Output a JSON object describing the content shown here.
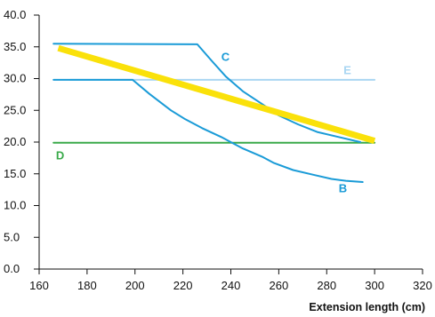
{
  "chart_data": {
    "type": "line",
    "title": "",
    "xlabel": "Extension length (cm)",
    "ylabel": "",
    "xlim": [
      160,
      320
    ],
    "ylim": [
      0,
      40
    ],
    "x_ticks": [
      160,
      180,
      200,
      220,
      240,
      260,
      280,
      300,
      320
    ],
    "y_ticks": [
      "0.0",
      "5.0",
      "10.0",
      "15.0",
      "20.0",
      "25.0",
      "30.0",
      "35.0",
      "40.0"
    ],
    "y_tick_values": [
      0,
      5,
      10,
      15,
      20,
      25,
      30,
      35,
      40
    ],
    "grid": false,
    "series": [
      {
        "name": "C",
        "color": "#1a9bd7",
        "label_at": [
          236,
          32.8
        ],
        "points": [
          [
            166,
            35.5
          ],
          [
            226,
            35.4
          ],
          [
            232,
            32.8
          ],
          [
            238,
            30.3
          ],
          [
            245,
            28.0
          ],
          [
            253,
            26.0
          ],
          [
            260,
            24.2
          ],
          [
            268,
            22.8
          ],
          [
            276,
            21.6
          ],
          [
            285,
            20.8
          ],
          [
            294,
            20.0
          ]
        ]
      },
      {
        "name": "B",
        "color": "#1a9bd7",
        "label_at": [
          285,
          12.1
        ],
        "points": [
          [
            166,
            29.8
          ],
          [
            199,
            29.8
          ],
          [
            206,
            27.6
          ],
          [
            215,
            25.0
          ],
          [
            221,
            23.6
          ],
          [
            228,
            22.2
          ],
          [
            236,
            20.8
          ],
          [
            245,
            19.0
          ],
          [
            253,
            17.7
          ],
          [
            258,
            16.7
          ],
          [
            266,
            15.6
          ],
          [
            275,
            14.8
          ],
          [
            282,
            14.2
          ],
          [
            288,
            13.9
          ],
          [
            295,
            13.7
          ]
        ]
      },
      {
        "name": "E",
        "color": "#a9d6f2",
        "label_at": [
          287,
          30.7
        ],
        "points": [
          [
            173,
            29.8
          ],
          [
            300,
            29.8
          ]
        ]
      },
      {
        "name": "D",
        "color": "#3aaa4a",
        "label_at": [
          167,
          17.3
        ],
        "points": [
          [
            166,
            19.9
          ],
          [
            300,
            19.9
          ]
        ]
      },
      {
        "name": "",
        "color": "#fae10a",
        "points": [
          [
            168,
            34.8
          ],
          [
            300,
            20.2
          ]
        ]
      }
    ]
  }
}
